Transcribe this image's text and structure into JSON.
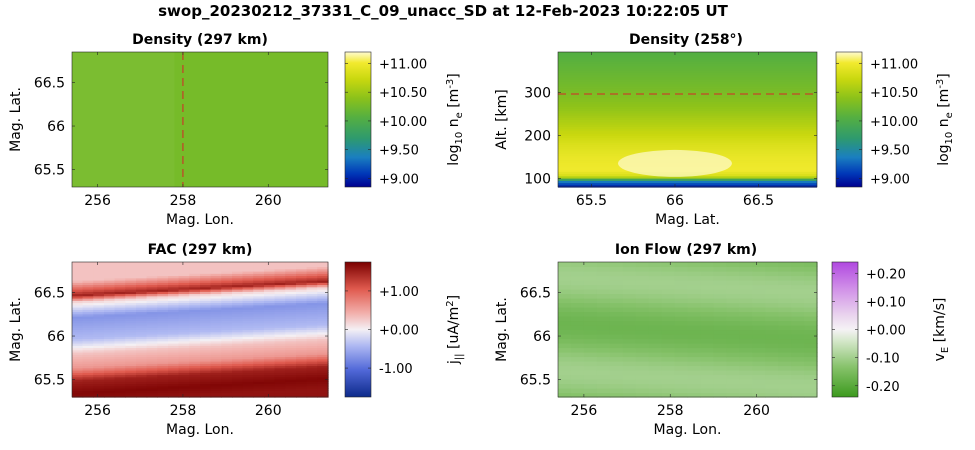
{
  "figure_title": "swop_20230212_37331_C_09_unacc_SD at 12-Feb-2023 10:22:05 UT",
  "chart_data": [
    {
      "id": "density_map",
      "type": "heatmap",
      "title": "Density (297 km)",
      "xlabel": "Mag. Lon.",
      "ylabel": "Mag. Lat.",
      "xlim": [
        255.4,
        261.4
      ],
      "ylim": [
        65.3,
        66.85
      ],
      "xticks": [
        256,
        258,
        260
      ],
      "xtick_labels": [
        "256",
        "258",
        "260"
      ],
      "yticks": [
        65.5,
        66,
        66.5
      ],
      "ytick_labels": [
        "65.5",
        "66",
        "66.5"
      ],
      "colorbar": {
        "label_main": "log",
        "label_sub": "10",
        "label_rest": " n",
        "label_sub2": "e",
        "label_unit": " [m",
        "label_sup": "-3",
        "label_close": "]",
        "colormap": "viridis-like",
        "ticks": [
          9.0,
          9.5,
          10.0,
          10.5,
          11.0
        ],
        "tick_labels": [
          "+9.00",
          "+9.50",
          "+10.00",
          "+10.50",
          "+11.00"
        ],
        "clim": [
          8.85,
          11.2
        ]
      },
      "field_value": 10.27,
      "marker_line": {
        "orientation": "vertical",
        "value": 258,
        "color": "#d62728"
      }
    },
    {
      "id": "density_profile",
      "type": "heatmap",
      "title": "Density (258°)",
      "xlabel": "Mag. Lat.",
      "ylabel": "Alt. [km]",
      "xlim": [
        65.3,
        66.85
      ],
      "ylim": [
        80,
        395
      ],
      "xticks": [
        65.5,
        66,
        66.5
      ],
      "xtick_labels": [
        "65.5",
        "66",
        "66.5"
      ],
      "yticks": [
        100,
        200,
        300
      ],
      "ytick_labels": [
        "100",
        "200",
        "300"
      ],
      "colorbar": {
        "label_main": "log",
        "label_sub": "10",
        "label_rest": " n",
        "label_sub2": "e",
        "label_unit": " [m",
        "label_sup": "-3",
        "label_close": "]",
        "colormap": "viridis-like",
        "ticks": [
          9.0,
          9.5,
          10.0,
          10.5,
          11.0
        ],
        "tick_labels": [
          "+9.00",
          "+9.50",
          "+10.00",
          "+10.50",
          "+11.00"
        ],
        "clim": [
          8.85,
          11.2
        ]
      },
      "altitude_profile": [
        [
          80,
          8.9
        ],
        [
          95,
          9.4
        ],
        [
          105,
          10.8
        ],
        [
          120,
          11.0
        ],
        [
          150,
          10.95
        ],
        [
          180,
          10.85
        ],
        [
          220,
          10.65
        ],
        [
          260,
          10.45
        ],
        [
          300,
          10.3
        ],
        [
          395,
          10.05
        ]
      ],
      "marker_line": {
        "orientation": "horizontal",
        "value": 297,
        "color": "#d62728"
      }
    },
    {
      "id": "fac_map",
      "type": "heatmap",
      "title": "FAC (297 km)",
      "xlabel": "Mag. Lon.",
      "ylabel": "Mag. Lat.",
      "xlim": [
        255.4,
        261.4
      ],
      "ylim": [
        65.3,
        66.85
      ],
      "xticks": [
        256,
        258,
        260
      ],
      "xtick_labels": [
        "256",
        "258",
        "260"
      ],
      "yticks": [
        65.5,
        66,
        66.5
      ],
      "ytick_labels": [
        "65.5",
        "66",
        "66.5"
      ],
      "colorbar": {
        "label_main": "j",
        "label_sub": "||",
        "label_rest": " [uA/m",
        "label_sup": "2",
        "label_close": "]",
        "colormap": "blue-white-red",
        "ticks": [
          -1.0,
          0.0,
          1.0
        ],
        "tick_labels": [
          "-1.00",
          "+0.00",
          "+1.00"
        ],
        "clim": [
          -1.75,
          1.75
        ]
      },
      "bands": [
        {
          "lat_center": 65.32,
          "value": 1.6
        },
        {
          "lat_center": 65.43,
          "value": 1.7
        },
        {
          "lat_center": 65.57,
          "value": 1.5
        },
        {
          "lat_center": 65.72,
          "value": 0.6
        },
        {
          "lat_center": 65.88,
          "value": 0.3
        },
        {
          "lat_center": 66.05,
          "value": -0.4
        },
        {
          "lat_center": 66.3,
          "value": -0.7
        },
        {
          "lat_center": 66.48,
          "value": 0.2
        },
        {
          "lat_center": 66.55,
          "value": 1.5
        },
        {
          "lat_center": 66.72,
          "value": 0.3
        }
      ],
      "band_tilt_deg_lat_per_deg_lon": 0.028
    },
    {
      "id": "ion_flow_map",
      "type": "heatmap",
      "title": "Ion Flow (297 km)",
      "xlabel": "Mag. Lon.",
      "ylabel": "Mag. Lat.",
      "xlim": [
        255.4,
        261.4
      ],
      "ylim": [
        65.3,
        66.85
      ],
      "xticks": [
        256,
        258,
        260
      ],
      "xtick_labels": [
        "256",
        "258",
        "260"
      ],
      "yticks": [
        65.5,
        66,
        66.5
      ],
      "ytick_labels": [
        "65.5",
        "66",
        "66.5"
      ],
      "colorbar": {
        "label_main": "v",
        "label_sub": "E",
        "label_rest": " [km/s]",
        "colormap": "purple-white-green",
        "ticks": [
          -0.2,
          -0.1,
          0.0,
          0.1,
          0.2
        ],
        "tick_labels": [
          "-0.20",
          "-0.10",
          "+0.00",
          "+0.10",
          "+0.20"
        ],
        "clim": [
          -0.24,
          0.24
        ]
      },
      "field_range": [
        -0.17,
        -0.1
      ]
    }
  ]
}
